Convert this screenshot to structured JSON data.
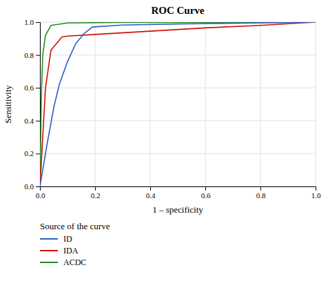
{
  "chart_data": {
    "type": "line",
    "title": "ROC Curve",
    "xlabel": "1 – specificity",
    "ylabel": "Sensitivity",
    "xlim": [
      0.0,
      1.0
    ],
    "ylim": [
      0.0,
      1.0
    ],
    "xticks": [
      {
        "value": 0.0,
        "label": "0.0"
      },
      0.2,
      0.4,
      0.6,
      0.8,
      {
        "value": 1.0,
        "label": "1.0"
      }
    ],
    "yticks": [
      {
        "value": 0.0,
        "label": "0.0"
      },
      0.2,
      0.4,
      0.6,
      0.8,
      {
        "value": 1.0,
        "label": "1.0"
      }
    ],
    "grid": true,
    "legend": "bottom",
    "legend_title": "Source of the curve",
    "series": [
      {
        "name": "ID",
        "color": "#3060c0",
        "x": [
          0.0,
          0.0,
          0.025,
          0.05,
          0.07,
          0.1,
          0.13,
          0.16,
          0.19,
          0.3,
          0.5,
          0.7,
          0.9,
          1.0
        ],
        "values": [
          0.0,
          0.0,
          0.25,
          0.48,
          0.62,
          0.76,
          0.87,
          0.93,
          0.97,
          0.982,
          0.989,
          0.993,
          0.997,
          1.0
        ]
      },
      {
        "name": "IDA",
        "color": "#cc1100",
        "x": [
          0.0,
          0.0,
          0.01,
          0.02,
          0.04,
          0.08,
          0.1,
          0.2,
          0.4,
          0.6,
          0.8,
          1.0
        ],
        "values": [
          0.0,
          0.0,
          0.3,
          0.6,
          0.83,
          0.91,
          0.915,
          0.925,
          0.945,
          0.965,
          0.98,
          1.0
        ]
      },
      {
        "name": "ACDC",
        "color": "#228b22",
        "x": [
          0.0,
          0.0,
          0.005,
          0.01,
          0.02,
          0.04,
          0.1,
          0.3,
          0.6,
          1.0
        ],
        "values": [
          0.0,
          0.0,
          0.55,
          0.8,
          0.92,
          0.98,
          0.995,
          0.998,
          0.999,
          1.0
        ]
      }
    ]
  }
}
